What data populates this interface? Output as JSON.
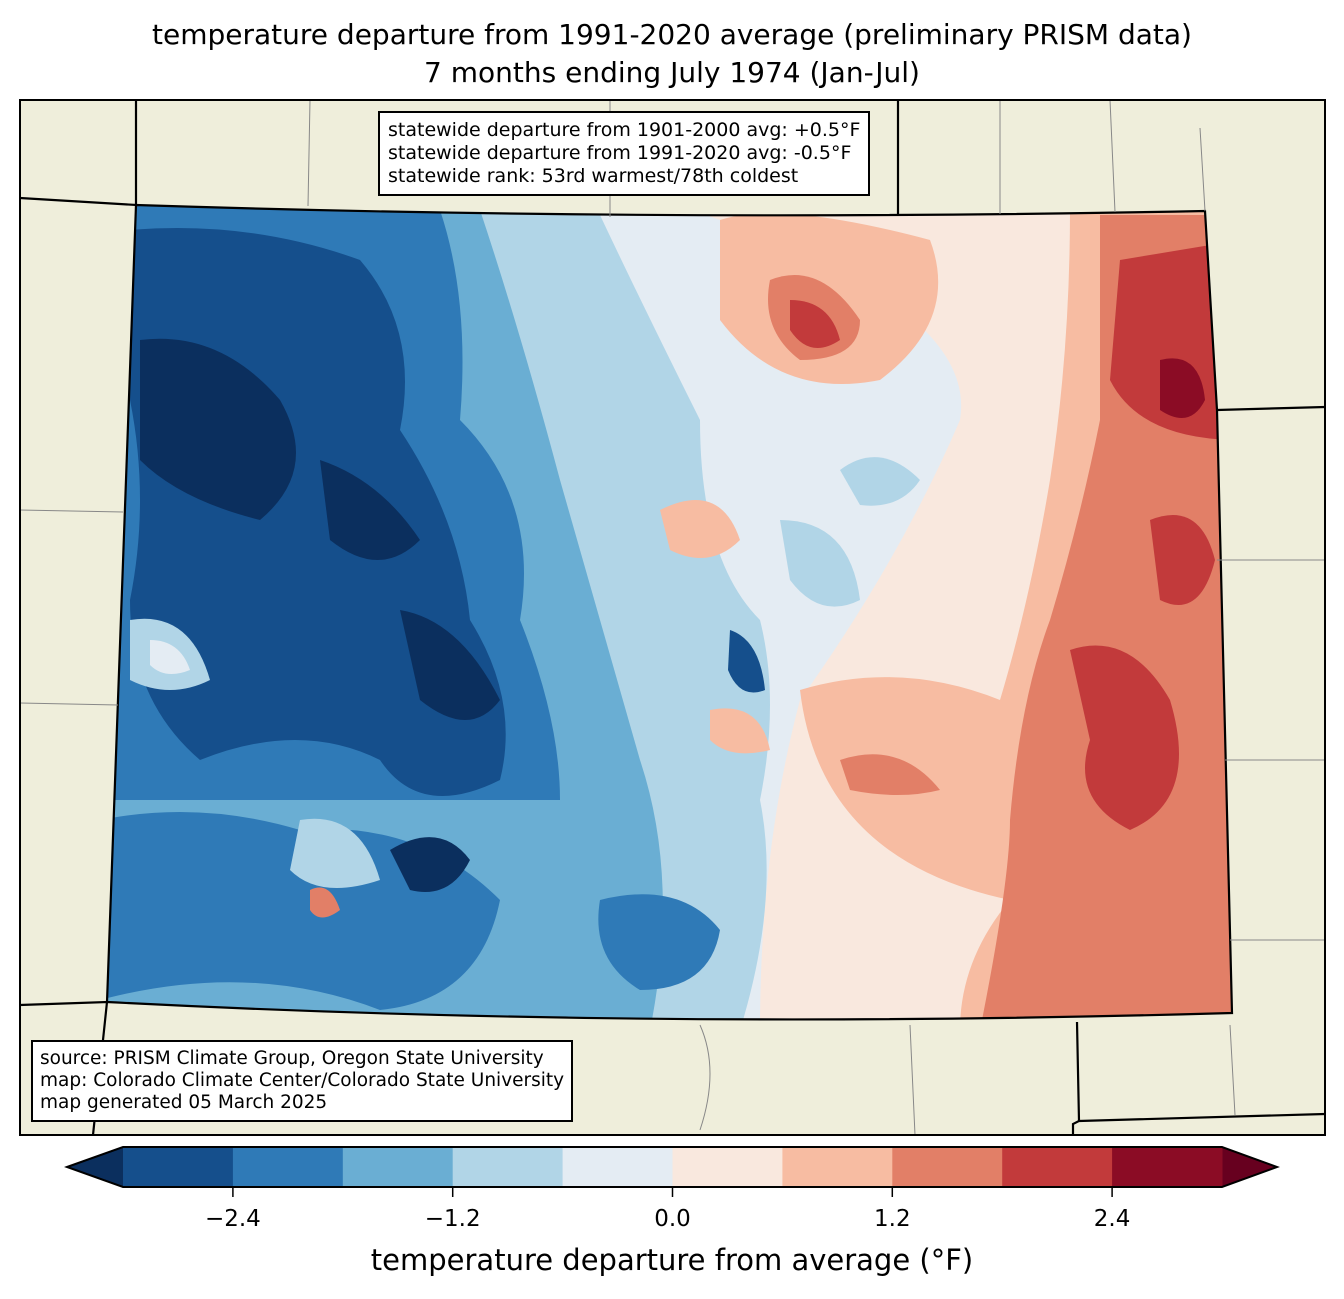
{
  "title": {
    "line1": "temperature departure from 1991-2020 average (preliminary PRISM data)",
    "line2": "7 months ending July 1974 (Jan-Jul)"
  },
  "stats_box": {
    "line1": "statewide departure from 1901-2000 avg: +0.5°F",
    "line2": "statewide departure from 1991-2020 avg: -0.5°F",
    "line3": "statewide rank: 53rd warmest/78th coldest"
  },
  "source_box": {
    "line1": "source: PRISM Climate Group, Oregon State University",
    "line2": "map: Colorado Climate Center/Colorado State University",
    "line3": "map generated 05 March 2025"
  },
  "colorbar": {
    "label": "temperature departure from average (°F)",
    "bounds": [
      -3.0,
      -2.4,
      -1.8,
      -1.2,
      -0.6,
      0.0,
      0.6,
      1.2,
      1.8,
      2.4,
      3.0
    ],
    "colors": [
      "#154f8c",
      "#2f7ab7",
      "#6aaed3",
      "#b1d5e7",
      "#e4ecf3",
      "#f9e8de",
      "#f7bca2",
      "#e27f67",
      "#c23a3b",
      "#8b0c25"
    ],
    "under_color": "#0b2f5e",
    "over_color": "#67001f",
    "ticks": [
      {
        "value": -2.4,
        "label": "−2.4"
      },
      {
        "value": -1.2,
        "label": "−1.2"
      },
      {
        "value": 0.0,
        "label": "0.0"
      },
      {
        "value": 1.2,
        "label": "1.2"
      },
      {
        "value": 2.4,
        "label": "2.4"
      }
    ]
  },
  "land_color": "#efeedb"
}
